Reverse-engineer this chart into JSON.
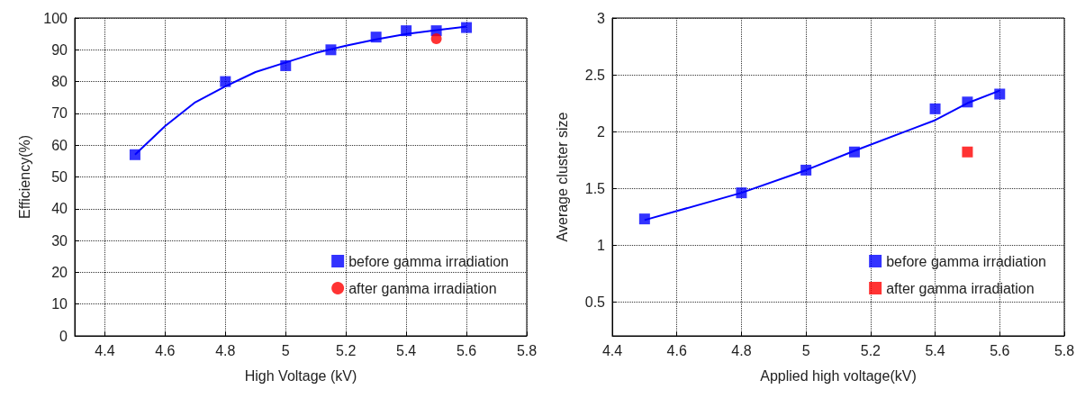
{
  "chart_data": [
    {
      "type": "scatter",
      "xlabel": "High Voltage (kV)",
      "ylabel": "Efficiency(%)",
      "xlim": [
        4.3,
        5.8
      ],
      "xticks": [
        4.4,
        4.6,
        4.8,
        5,
        5.2,
        5.4,
        5.6,
        5.8
      ],
      "ylim": [
        0,
        100
      ],
      "yticks": [
        0,
        10,
        20,
        30,
        40,
        50,
        60,
        70,
        80,
        90,
        100
      ],
      "grid": true,
      "legend": "bottom right",
      "series": [
        {
          "type": "line",
          "color": "#0000ff",
          "marker": "none",
          "x": [
            4.5,
            4.6,
            4.7,
            4.8,
            4.9,
            5.0,
            5.1,
            5.2,
            5.3,
            5.4,
            5.5,
            5.6
          ],
          "values": [
            57,
            66,
            73.5,
            78.5,
            83,
            86,
            89,
            91.3,
            93.3,
            95,
            96.2,
            97.3
          ]
        },
        {
          "name": "before gamma irradiation",
          "color": "#0000ff",
          "marker": "square",
          "x": [
            4.5,
            4.8,
            5.0,
            5.15,
            5.3,
            5.4,
            5.5,
            5.6
          ],
          "values": [
            57,
            80,
            85,
            90,
            94,
            96,
            96,
            97
          ]
        },
        {
          "name": "after gamma irradiation",
          "color": "#ff0000",
          "marker": "circle",
          "x": [
            5.5
          ],
          "values": [
            93.5
          ]
        }
      ]
    },
    {
      "type": "scatter",
      "xlabel": "Applied high voltage(kV)",
      "ylabel": "Average cluster size",
      "xlim": [
        4.4,
        5.8
      ],
      "xticks": [
        4.4,
        4.6,
        4.8,
        5,
        5.2,
        5.4,
        5.6,
        5.8
      ],
      "ylim": [
        0.2,
        3
      ],
      "yticks": [
        0.5,
        1,
        1.5,
        2,
        2.5,
        3
      ],
      "grid": true,
      "legend": "bottom right",
      "series": [
        {
          "type": "line",
          "color": "#0000ff",
          "marker": "none",
          "x": [
            4.5,
            4.8,
            5.0,
            5.15,
            5.4,
            5.5,
            5.6
          ],
          "values": [
            1.22,
            1.46,
            1.66,
            1.83,
            2.1,
            2.25,
            2.36
          ]
        },
        {
          "name": "before gamma irradiation",
          "color": "#0000ff",
          "marker": "square",
          "x": [
            4.5,
            4.8,
            5.0,
            5.15,
            5.4,
            5.5,
            5.6
          ],
          "values": [
            1.23,
            1.46,
            1.66,
            1.82,
            2.2,
            2.26,
            2.33
          ]
        },
        {
          "name": "after gamma irradiation",
          "color": "#ff0000",
          "marker": "square",
          "x": [
            5.5
          ],
          "values": [
            1.82
          ]
        }
      ]
    }
  ]
}
